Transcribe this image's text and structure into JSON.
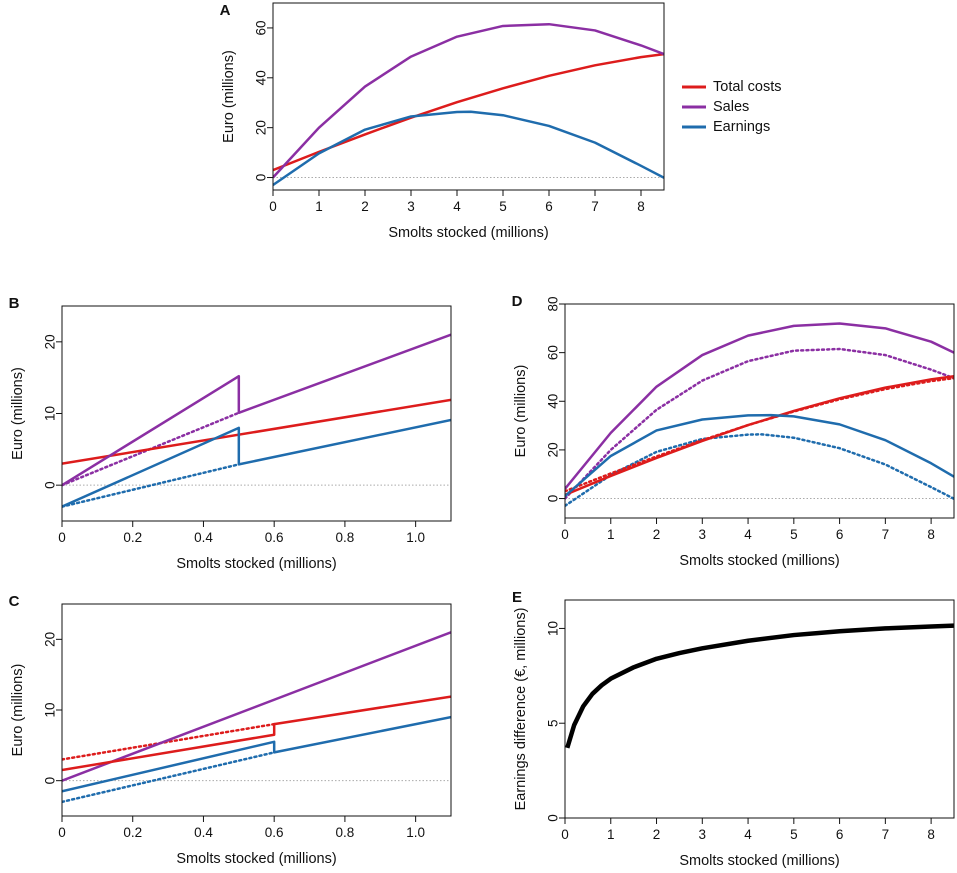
{
  "figure": {
    "colors": {
      "costs": "#dd1c1c",
      "sales": "#8b2fa3",
      "earnings": "#1f6cad",
      "black": "#000000",
      "zero": "#aaaaaa"
    }
  },
  "chart_data": [
    {
      "panel": "A",
      "type": "line",
      "xlabel": "Smolts stocked (millions)",
      "ylabel": "Euro (millions)",
      "xlim": [
        0,
        8.5
      ],
      "ylim": [
        -5,
        70
      ],
      "xticks": [
        0,
        1,
        2,
        3,
        4,
        5,
        6,
        7,
        8
      ],
      "yticks": [
        0,
        20,
        40,
        60
      ],
      "zero_line": true,
      "legend": {
        "placement": "right-outside",
        "entries": [
          {
            "label": "Total costs",
            "color_key": "costs"
          },
          {
            "label": "Sales",
            "color_key": "sales"
          },
          {
            "label": "Earnings",
            "color_key": "earnings"
          }
        ]
      },
      "series": [
        {
          "name": "Total costs",
          "color_key": "costs",
          "style": "solid",
          "x": [
            0,
            1,
            2,
            3,
            4,
            5,
            6,
            7,
            8,
            8.5
          ],
          "y": [
            3,
            10.3,
            17.3,
            24,
            30.2,
            35.8,
            40.8,
            45,
            48.3,
            49.5
          ]
        },
        {
          "name": "Sales",
          "color_key": "sales",
          "style": "solid",
          "x": [
            0,
            1,
            2,
            3,
            4,
            5,
            6,
            7,
            8,
            8.5
          ],
          "y": [
            0,
            20,
            36.5,
            48.5,
            56.5,
            60.8,
            61.5,
            59,
            53,
            49.5
          ]
        },
        {
          "name": "Earnings",
          "color_key": "earnings",
          "style": "solid",
          "x": [
            0,
            1,
            2,
            3,
            4,
            4.3,
            5,
            6,
            7,
            8,
            8.5
          ],
          "y": [
            -3,
            9.7,
            19.2,
            24.5,
            26.3,
            26.4,
            25,
            20.7,
            14,
            4.7,
            -0.1
          ]
        }
      ]
    },
    {
      "panel": "B",
      "type": "line",
      "xlabel": "Smolts stocked (millions)",
      "ylabel": "Euro (millions)",
      "xlim": [
        0,
        1.1
      ],
      "ylim": [
        -5,
        25
      ],
      "xticks": [
        0,
        0.2,
        0.4,
        0.6,
        0.8,
        1.0
      ],
      "xtick_labels": [
        "0",
        "0.2",
        "0.4",
        "0.6",
        "0.8",
        "1.0"
      ],
      "yticks": [
        0,
        10,
        20
      ],
      "zero_line": true,
      "series": [
        {
          "name": "Sales (dotted)",
          "color_key": "sales",
          "style": "dotted",
          "x": [
            0,
            0.5
          ],
          "y": [
            0,
            10.1
          ]
        },
        {
          "name": "Earnings (dotted)",
          "color_key": "earnings",
          "style": "dotted",
          "x": [
            0,
            0.5
          ],
          "y": [
            -3,
            2.9
          ]
        },
        {
          "name": "Total costs",
          "color_key": "costs",
          "style": "solid",
          "x": [
            0,
            1.1
          ],
          "y": [
            3,
            11.9
          ]
        },
        {
          "name": "Sales",
          "color_key": "sales",
          "style": "solid",
          "x": [
            0,
            0.5,
            0.5,
            1.1
          ],
          "y": [
            0,
            15.2,
            10.1,
            21
          ]
        },
        {
          "name": "Earnings",
          "color_key": "earnings",
          "style": "solid",
          "x": [
            0,
            0.5,
            0.5,
            1.1
          ],
          "y": [
            -3,
            8,
            2.9,
            9.1
          ]
        }
      ]
    },
    {
      "panel": "C",
      "type": "line",
      "xlabel": "Smolts stocked (millions)",
      "ylabel": "Euro (millions)",
      "xlim": [
        0,
        1.1
      ],
      "ylim": [
        -5,
        25
      ],
      "xticks": [
        0,
        0.2,
        0.4,
        0.6,
        0.8,
        1.0
      ],
      "xtick_labels": [
        "0",
        "0.2",
        "0.4",
        "0.6",
        "0.8",
        "1.0"
      ],
      "yticks": [
        0,
        10,
        20
      ],
      "zero_line": true,
      "series": [
        {
          "name": "Total costs (dotted)",
          "color_key": "costs",
          "style": "dotted",
          "x": [
            0,
            0.6
          ],
          "y": [
            3,
            8
          ]
        },
        {
          "name": "Earnings (dotted)",
          "color_key": "earnings",
          "style": "dotted",
          "x": [
            0,
            0.6
          ],
          "y": [
            -3,
            4
          ]
        },
        {
          "name": "Sales",
          "color_key": "sales",
          "style": "solid",
          "x": [
            0,
            1.1
          ],
          "y": [
            0,
            21
          ]
        },
        {
          "name": "Total costs",
          "color_key": "costs",
          "style": "solid",
          "x": [
            0,
            0.6,
            0.6,
            1.1
          ],
          "y": [
            1.5,
            6.5,
            8,
            11.9
          ]
        },
        {
          "name": "Earnings",
          "color_key": "earnings",
          "style": "solid",
          "x": [
            0,
            0.6,
            0.6,
            1.1
          ],
          "y": [
            -1.5,
            5.5,
            4,
            9
          ]
        }
      ]
    },
    {
      "panel": "D",
      "type": "line",
      "xlabel": "Smolts stocked (millions)",
      "ylabel": "Euro (millions)",
      "xlim": [
        0,
        8.5
      ],
      "ylim": [
        -8,
        80
      ],
      "xticks": [
        0,
        1,
        2,
        3,
        4,
        5,
        6,
        7,
        8
      ],
      "yticks": [
        0,
        20,
        40,
        60,
        80
      ],
      "zero_line": true,
      "series": [
        {
          "name": "Sales (dotted)",
          "color_key": "sales",
          "style": "dotted",
          "x": [
            0,
            1,
            2,
            3,
            4,
            5,
            6,
            7,
            8,
            8.5
          ],
          "y": [
            0,
            20,
            36.5,
            48.5,
            56.5,
            60.8,
            61.5,
            59,
            53,
            49.5
          ]
        },
        {
          "name": "Earnings (dotted)",
          "color_key": "earnings",
          "style": "dotted",
          "x": [
            0,
            1,
            2,
            3,
            4,
            4.3,
            5,
            6,
            7,
            8,
            8.5
          ],
          "y": [
            -3,
            9.7,
            19.2,
            24.5,
            26.3,
            26.4,
            25,
            20.7,
            14,
            4.7,
            -0.1
          ]
        },
        {
          "name": "Total costs (dotted)",
          "color_key": "costs",
          "style": "dotted",
          "x": [
            0,
            1,
            2,
            3,
            4,
            5,
            6,
            7,
            8,
            8.5
          ],
          "y": [
            3,
            10.3,
            17.3,
            24,
            30.2,
            35.8,
            40.8,
            45,
            48.3,
            49.5
          ]
        },
        {
          "name": "Total costs",
          "color_key": "costs",
          "style": "solid",
          "x": [
            0,
            1,
            2,
            3,
            4,
            5,
            6,
            7,
            8,
            8.5
          ],
          "y": [
            1.5,
            9.3,
            16.7,
            23.7,
            30.2,
            36,
            41.2,
            45.6,
            49,
            50.3
          ]
        },
        {
          "name": "Sales",
          "color_key": "sales",
          "style": "solid",
          "x": [
            0,
            1,
            2,
            3,
            4,
            5,
            6,
            7,
            8,
            8.5
          ],
          "y": [
            4,
            27,
            46,
            59,
            67,
            71,
            72,
            70,
            64.5,
            60
          ]
        },
        {
          "name": "Earnings",
          "color_key": "earnings",
          "style": "solid",
          "x": [
            0,
            1,
            2,
            3,
            4,
            4.5,
            5,
            6,
            7,
            8,
            8.5
          ],
          "y": [
            1,
            17.5,
            28,
            32.5,
            34.2,
            34.3,
            33.8,
            30.5,
            24,
            14.5,
            9
          ]
        }
      ]
    },
    {
      "panel": "E",
      "type": "line",
      "xlabel": "Smolts stocked (millions)",
      "ylabel": "Earnings difference (€, millions)",
      "xlim": [
        0,
        8.5
      ],
      "ylim": [
        0,
        11.5
      ],
      "xticks": [
        0,
        1,
        2,
        3,
        4,
        5,
        6,
        7,
        8
      ],
      "yticks": [
        0,
        5,
        10
      ],
      "zero_line": false,
      "series": [
        {
          "name": "Earnings difference",
          "color_key": "black",
          "style": "solid",
          "width": 4.5,
          "x": [
            0.05,
            0.2,
            0.4,
            0.6,
            0.8,
            1,
            1.5,
            2,
            2.5,
            3,
            4,
            5,
            6,
            7,
            8,
            8.5
          ],
          "y": [
            3.7,
            4.9,
            5.9,
            6.55,
            7.0,
            7.35,
            7.95,
            8.4,
            8.7,
            8.95,
            9.35,
            9.65,
            9.85,
            10.0,
            10.1,
            10.15
          ]
        }
      ]
    }
  ]
}
